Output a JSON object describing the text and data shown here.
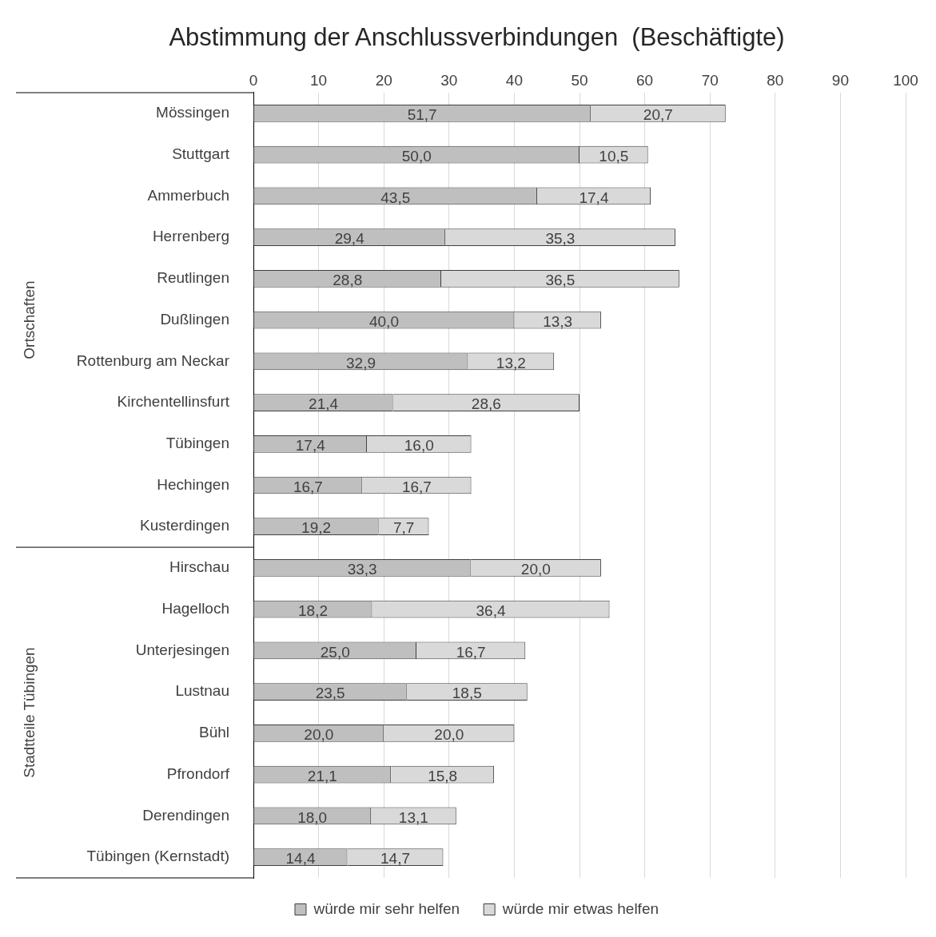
{
  "chart_data": {
    "type": "bar",
    "orientation": "horizontal",
    "stacked": true,
    "title": "Abstimmung der Anschlussverbindungen  (Beschäftigte)",
    "categories": [
      "Mössingen",
      "Stuttgart",
      "Ammerbuch",
      "Herrenberg",
      "Reutlingen",
      "Dußlingen",
      "Rottenburg am Neckar",
      "Kirchentellinsfurt",
      "Tübingen",
      "Hechingen",
      "Kusterdingen",
      "Hirschau",
      "Hagelloch",
      "Unterjesingen",
      "Lustnau",
      "Bühl",
      "Pfrondorf",
      "Derendingen",
      "Tübingen (Kernstadt)"
    ],
    "series": [
      {
        "name": "würde mir sehr helfen",
        "color": "#bfbfbf",
        "values": [
          51.7,
          50.0,
          43.5,
          29.4,
          28.8,
          40.0,
          32.9,
          21.4,
          17.4,
          16.7,
          19.2,
          33.3,
          18.2,
          25.0,
          23.5,
          20.0,
          21.1,
          18.0,
          14.4
        ],
        "value_labels": [
          "51,7",
          "50,0",
          "43,5",
          "29,4",
          "28,8",
          "40,0",
          "32,9",
          "21,4",
          "17,4",
          "16,7",
          "19,2",
          "33,3",
          "18,2",
          "25,0",
          "23,5",
          "20,0",
          "21,1",
          "18,0",
          "14,4"
        ]
      },
      {
        "name": "würde mir etwas helfen",
        "color": "#d9d9d9",
        "values": [
          20.7,
          10.5,
          17.4,
          35.3,
          36.5,
          13.3,
          13.2,
          28.6,
          16.0,
          16.7,
          7.7,
          20.0,
          36.4,
          16.7,
          18.5,
          20.0,
          15.8,
          13.1,
          14.7
        ],
        "value_labels": [
          "20,7",
          "10,5",
          "17,4",
          "35,3",
          "36,5",
          "13,3",
          "13,2",
          "28,6",
          "16,0",
          "16,7",
          "7,7",
          "20,0",
          "36,4",
          "16,7",
          "18,5",
          "20,0",
          "15,8",
          "13,1",
          "14,7"
        ]
      }
    ],
    "xlim": [
      0,
      100
    ],
    "xticks": [
      0,
      10,
      20,
      30,
      40,
      50,
      60,
      70,
      80,
      90,
      100
    ],
    "grid": "x",
    "legend": "bottom",
    "annotations": [
      "Ortschaften",
      "Stadtteile Tübingen"
    ]
  }
}
